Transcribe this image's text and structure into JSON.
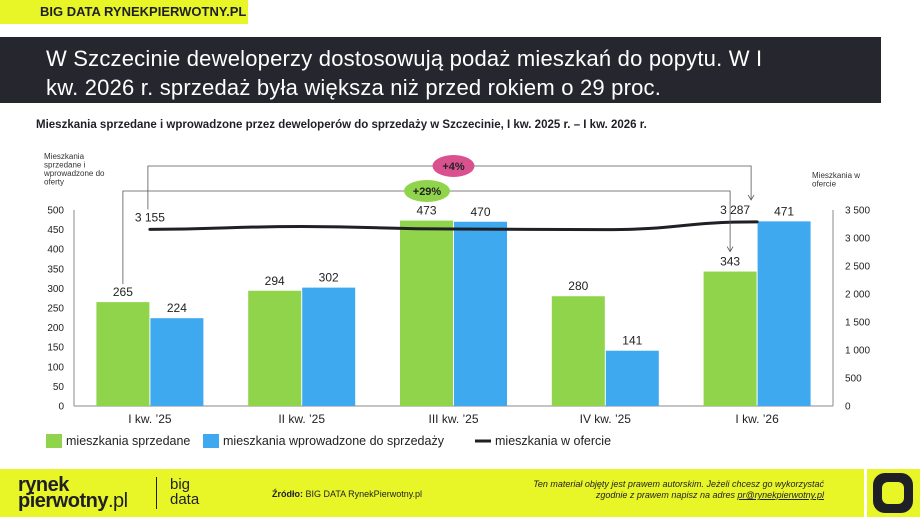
{
  "header": {
    "brand_tag": "BIG DATA RYNEKPIERWOTNY.PL",
    "headline_line1": "W Szczecinie deweloperzy dostosowują podaż mieszkań do popytu. W I",
    "headline_line2": "kw. 2026 r. sprzedaż była większa niż przed rokiem o 29 proc."
  },
  "chart_data": {
    "type": "bar",
    "title": "Mieszkania sprzedane i wprowadzone przez deweloperów do sprzedaży w Szczecinie, I kw. 2025 r. – I kw. 2026 r.",
    "categories": [
      "I kw. ’25",
      "II kw. ’25",
      "III kw. ’25",
      "IV kw. ’25",
      "I kw. ’26"
    ],
    "ylabel_left": [
      "Mieszkania",
      "sprzedane i",
      "wprowadzone do",
      "oferty"
    ],
    "ylabel_right": [
      "Mieszkania w",
      "ofercie"
    ],
    "ylim_left": [
      0,
      500
    ],
    "yticks_left": [
      "0",
      "50",
      "100",
      "150",
      "200",
      "250",
      "300",
      "350",
      "400",
      "450",
      "500"
    ],
    "ylim_right": [
      0,
      3500
    ],
    "yticks_right": [
      "0",
      "500",
      "1 000",
      "1 500",
      "2 000",
      "2 500",
      "3 000",
      "3 500"
    ],
    "series": [
      {
        "name": "mieszkania sprzedane",
        "kind": "bar",
        "axis": "left",
        "color": "#8fd44a",
        "values": [
          265,
          294,
          473,
          280,
          343
        ]
      },
      {
        "name": "mieszkania wprowadzone do sprzedaży",
        "kind": "bar",
        "axis": "left",
        "color": "#3fa9f0",
        "values": [
          224,
          302,
          470,
          141,
          471
        ]
      },
      {
        "name": "mieszkania w ofercie",
        "kind": "line",
        "axis": "right",
        "color": "#1f1f26",
        "values": [
          3155,
          3205,
          3160,
          3150,
          3287
        ]
      }
    ],
    "line_labels": [
      "3 155",
      "",
      "",
      "",
      "3 287"
    ],
    "annotations": [
      {
        "text": "+4%",
        "color": "#d9528f",
        "from": 0,
        "to": 4,
        "series": "line"
      },
      {
        "text": "+29%",
        "color": "#8fd44a",
        "from": 0,
        "to": 4,
        "series": "bar0"
      }
    ],
    "grid": false,
    "legend": "bottom-left"
  },
  "footer": {
    "logo_line1": "rynek",
    "logo_line2": "pierwotny",
    "logo_tld": ".pl",
    "logo_big_line1": "big",
    "logo_big_line2": "data",
    "source_label": "Źródło:",
    "source_text": " BIG DATA RynekPierwotny.pl",
    "rights_line1": "Ten materiał objęty jest prawem autorskim. Jeżeli chcesz go wykorzystać",
    "rights_line2": "zgodnie z prawem napisz na adres ",
    "rights_email": "pr@rynekpierwotny.pl"
  }
}
